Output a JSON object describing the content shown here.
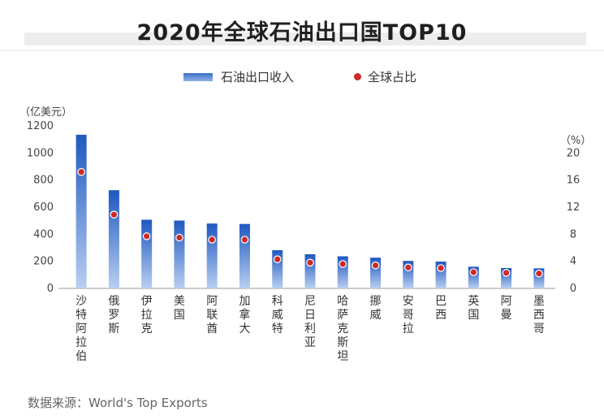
{
  "title": "2020年全球石油出口国TOP10",
  "legend": {
    "bar": "石油出口收入",
    "dot": "全球占比"
  },
  "source": "数据来源：World's Top Exports",
  "colors": {
    "bar_top": "#1e58c0",
    "bar_bottom": "#b9cff0",
    "dot": "#cc2b27",
    "axis": "#999999"
  },
  "chart_data": {
    "type": "bar",
    "title": "2020年全球石油出口国TOP10",
    "left_unit": "（亿美元）",
    "right_unit": "（%）",
    "ylim": [
      0,
      1200
    ],
    "yticks": [
      "0",
      "200",
      "400",
      "600",
      "800",
      "1000",
      "1200"
    ],
    "y2lim": [
      0,
      24
    ],
    "y2ticks": [
      "0",
      "4",
      "8",
      "12",
      "16",
      "20"
    ],
    "categories": [
      "沙特阿拉伯",
      "俄罗斯",
      "伊拉克",
      "美国",
      "阿联酋",
      "加拿大",
      "科威特",
      "尼日利亚",
      "哈萨克斯坦",
      "挪威",
      "安哥拉",
      "巴西",
      "英国",
      "阿曼",
      "墨西哥"
    ],
    "series": [
      {
        "name": "石油出口收入",
        "axis": "left",
        "values": [
          1135,
          725,
          507,
          501,
          479,
          476,
          282,
          252,
          237,
          227,
          203,
          198,
          160,
          150,
          148
        ]
      },
      {
        "name": "全球占比",
        "axis": "right",
        "values": [
          17.2,
          10.9,
          7.7,
          7.5,
          7.2,
          7.2,
          4.3,
          3.8,
          3.6,
          3.4,
          3.1,
          3.0,
          2.4,
          2.3,
          2.2
        ]
      }
    ]
  }
}
